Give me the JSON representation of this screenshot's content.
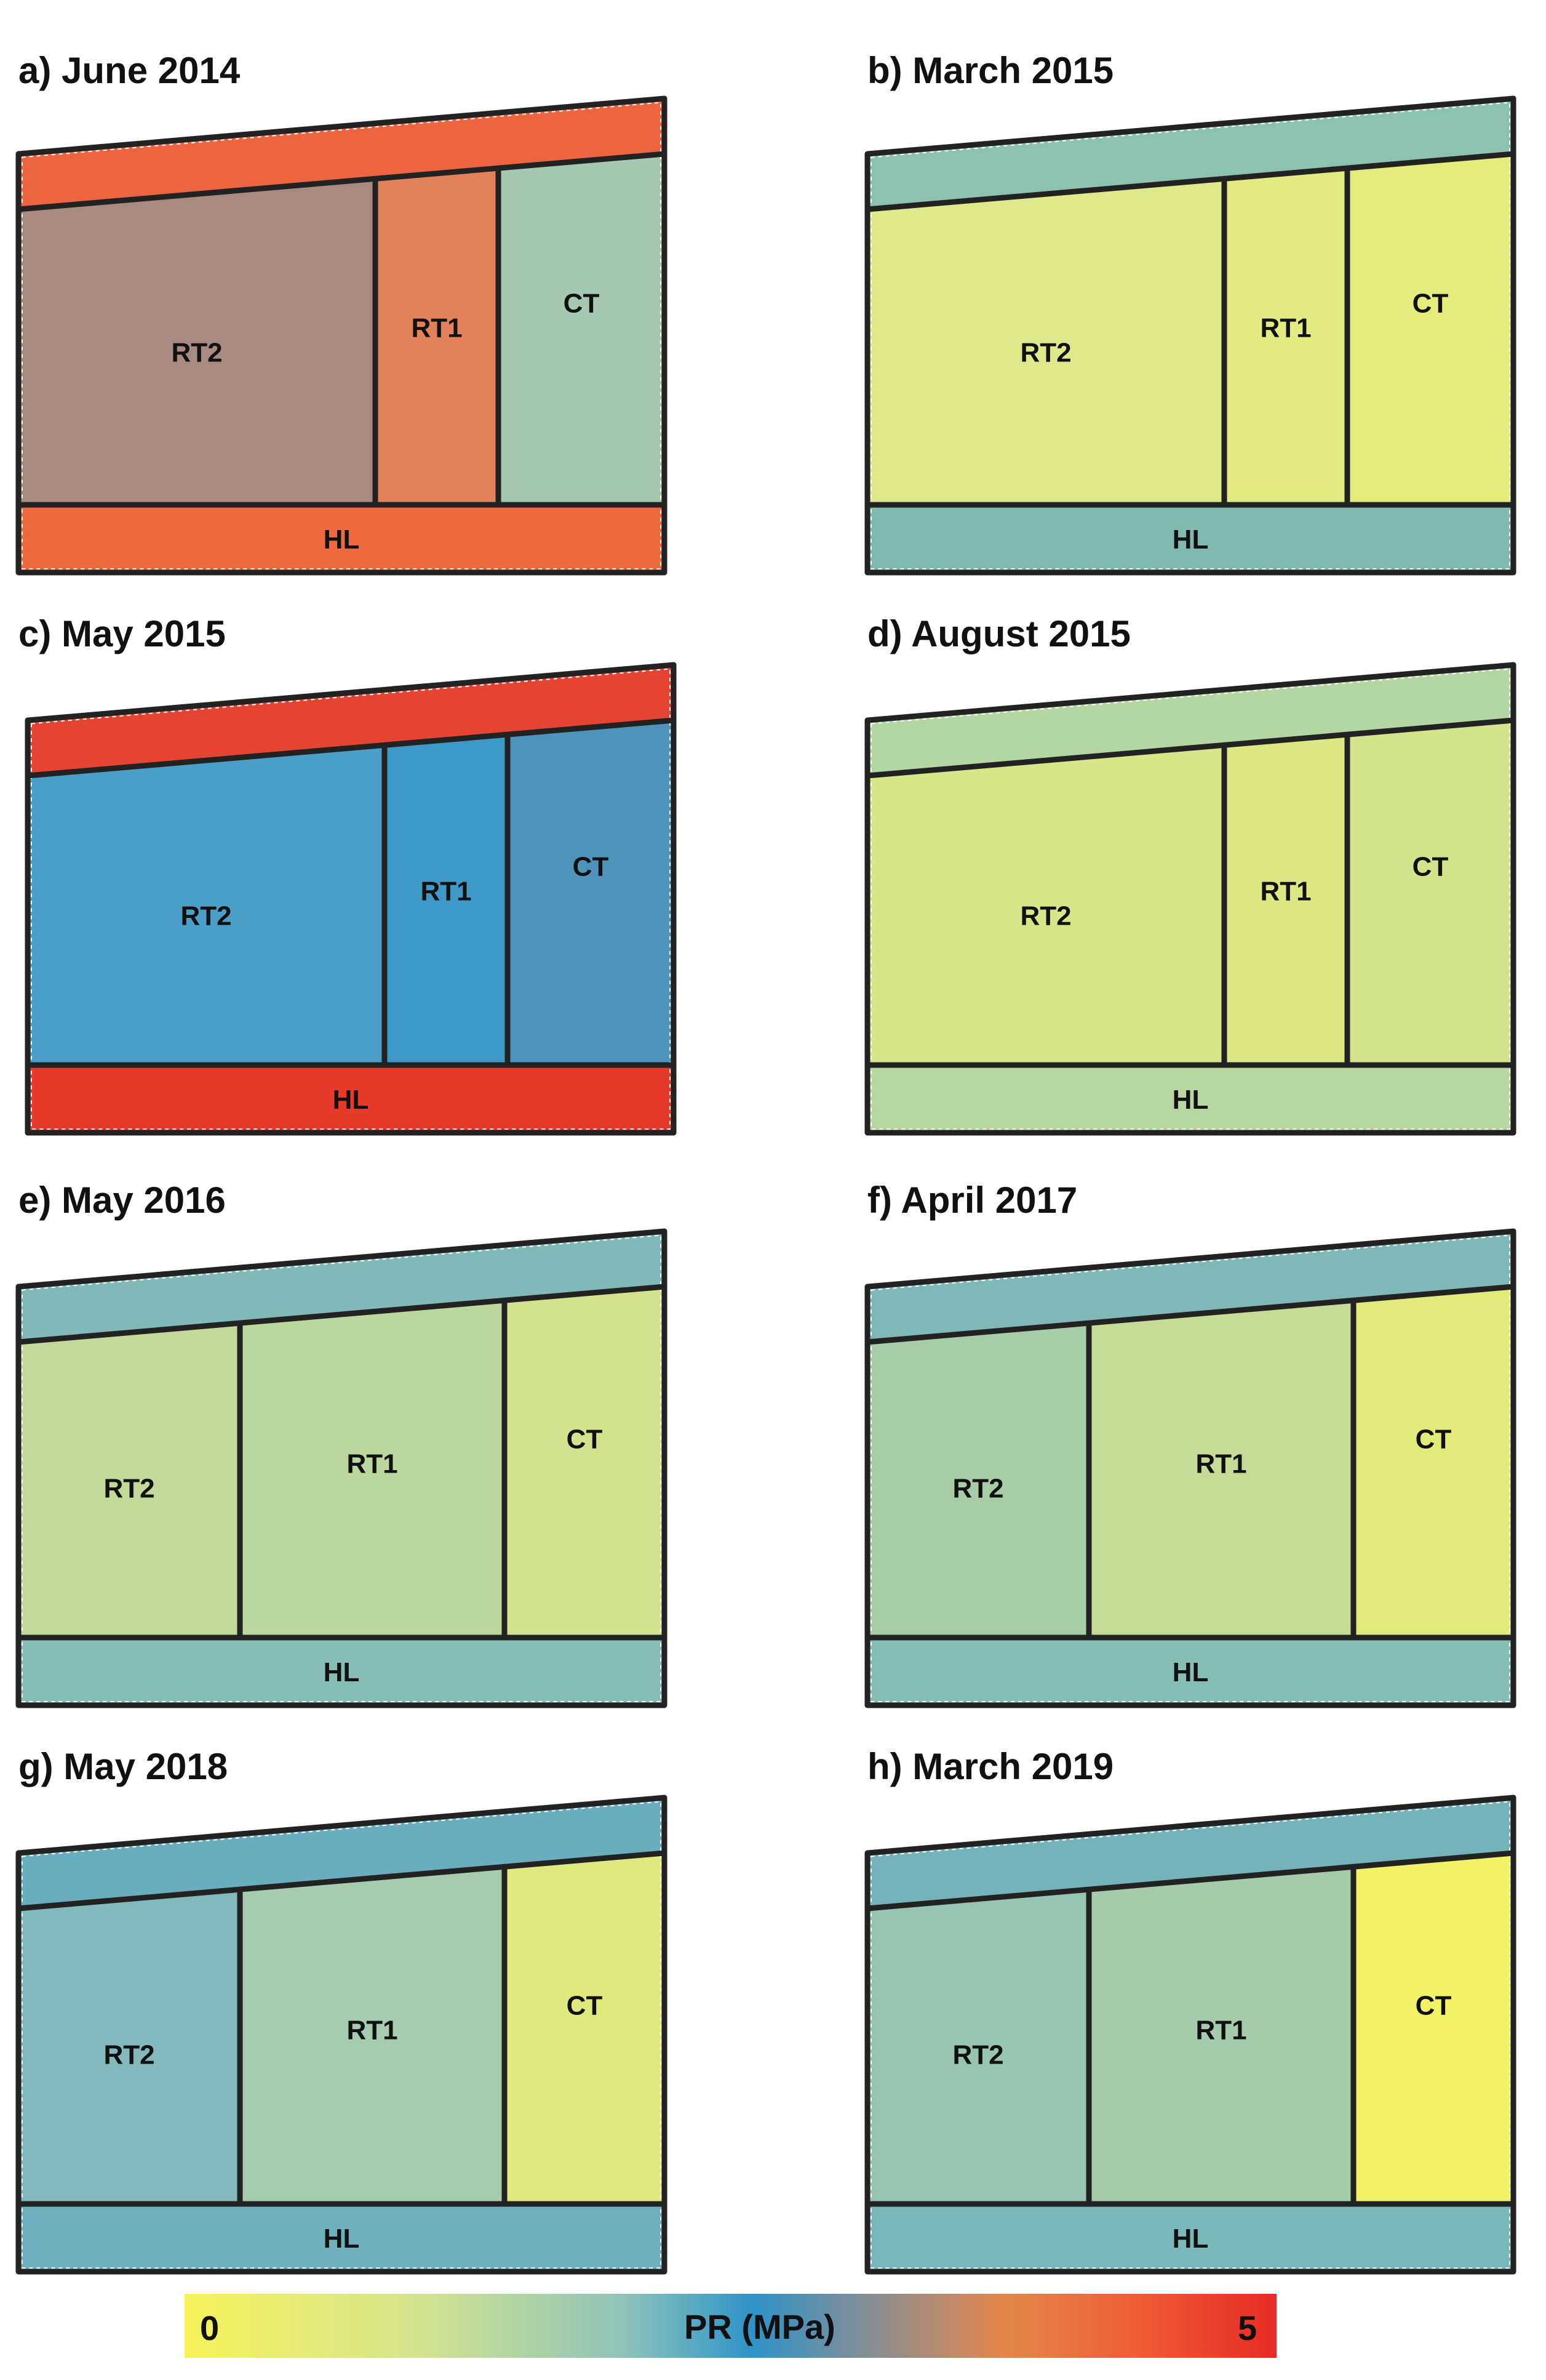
{
  "colorbar": {
    "title": "PR (MPa)",
    "min_label": "0",
    "max_label": "5",
    "stops": [
      "#f5f35a",
      "#d8e58c",
      "#8fc4b8",
      "#2e93c8",
      "#808e98",
      "#e4864c",
      "#ee5a36",
      "#e82a25"
    ]
  },
  "panels": [
    {
      "title": "a) June 2014",
      "zones": [
        {
          "label": "RT2",
          "color": "#a88a80"
        },
        {
          "label": "RT1",
          "color": "#e2825a"
        },
        {
          "label": "CT",
          "color": "#a6c8b0"
        },
        {
          "label": "HL",
          "color": "#ee6a3e"
        },
        {
          "label": "",
          "color": "#ec6440"
        }
      ]
    },
    {
      "title": "b) March 2015",
      "zones": [
        {
          "label": "RT2",
          "color": "#dfe88a"
        },
        {
          "label": "RT1",
          "color": "#e3ea82"
        },
        {
          "label": "CT",
          "color": "#e6ec7c"
        },
        {
          "label": "HL",
          "color": "#7fb9b0"
        },
        {
          "label": "",
          "color": "#8ec2b0"
        }
      ]
    },
    {
      "title": "c) May 2015",
      "zones": [
        {
          "label": "RT2",
          "color": "#4a9ec8"
        },
        {
          "label": "RT1",
          "color": "#3f99c8"
        },
        {
          "label": "CT",
          "color": "#4d93bb"
        },
        {
          "label": "HL",
          "color": "#e63a2a"
        },
        {
          "label": "",
          "color": "#e54432"
        }
      ]
    },
    {
      "title": "d) August 2015",
      "zones": [
        {
          "label": "RT2",
          "color": "#d8e68a"
        },
        {
          "label": "RT1",
          "color": "#dde784"
        },
        {
          "label": "CT",
          "color": "#d4e48c"
        },
        {
          "label": "HL",
          "color": "#b8d6a0"
        },
        {
          "label": "",
          "color": "#b4d6a2"
        }
      ]
    },
    {
      "title": "e) May 2016",
      "zones": [
        {
          "label": "RT2",
          "color": "#c2d99a"
        },
        {
          "label": "RT1",
          "color": "#bcd79e"
        },
        {
          "label": "CT",
          "color": "#d2e28e"
        },
        {
          "label": "HL",
          "color": "#86bdb6"
        },
        {
          "label": "",
          "color": "#80b9b8"
        }
      ]
    },
    {
      "title": "f) April 2017",
      "zones": [
        {
          "label": "RT2",
          "color": "#a8cca8"
        },
        {
          "label": "RT1",
          "color": "#c6dc96"
        },
        {
          "label": "CT",
          "color": "#e2ea7c"
        },
        {
          "label": "HL",
          "color": "#86bdb4"
        },
        {
          "label": "",
          "color": "#7fb8b6"
        }
      ]
    },
    {
      "title": "g) May 2018",
      "zones": [
        {
          "label": "RT2",
          "color": "#82b9bc"
        },
        {
          "label": "RT1",
          "color": "#a6cbae"
        },
        {
          "label": "CT",
          "color": "#dfe97e"
        },
        {
          "label": "HL",
          "color": "#6fb0bf"
        },
        {
          "label": "",
          "color": "#6aadbf"
        }
      ]
    },
    {
      "title": "h) March 2019",
      "zones": [
        {
          "label": "RT2",
          "color": "#98c4b2"
        },
        {
          "label": "RT1",
          "color": "#a6cbac"
        },
        {
          "label": "CT",
          "color": "#f2f266"
        },
        {
          "label": "HL",
          "color": "#7ab7b8"
        },
        {
          "label": "",
          "color": "#74b3ba"
        }
      ]
    }
  ]
}
